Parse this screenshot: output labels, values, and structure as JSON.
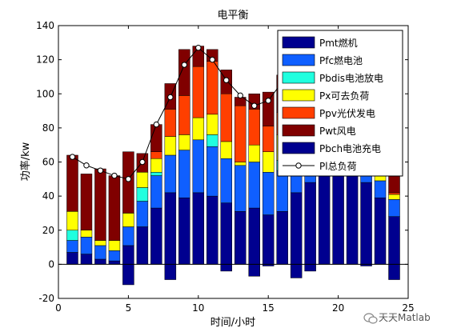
{
  "watermark": "天天Matlab",
  "chart_data": {
    "type": "bar",
    "stacked": true,
    "title": "电平衡",
    "xlabel": "时间/小时",
    "ylabel": "功率/kw",
    "xlim": [
      0,
      25
    ],
    "ylim": [
      -20,
      140
    ],
    "xticks": [
      0,
      5,
      10,
      15,
      20,
      25
    ],
    "yticks": [
      -20,
      0,
      20,
      40,
      60,
      80,
      100,
      120,
      140
    ],
    "grid": false,
    "legend_position": "top-right",
    "x": [
      1,
      2,
      3,
      4,
      5,
      6,
      7,
      8,
      9,
      10,
      11,
      12,
      13,
      14,
      15,
      16,
      17,
      18,
      19,
      20,
      21,
      22,
      23,
      24
    ],
    "series": [
      {
        "name": "Pmt燃机",
        "color": "#00008f",
        "values": [
          7,
          6,
          3,
          2,
          11,
          22,
          33,
          42,
          39,
          42,
          40,
          36,
          31,
          33,
          29,
          31,
          42,
          48,
          55,
          60,
          59,
          48,
          39,
          28
        ]
      },
      {
        "name": "Pfc燃电池",
        "color": "#0f5fff",
        "values": [
          7,
          10,
          8,
          6,
          11,
          15,
          19,
          22,
          28,
          31,
          29,
          26,
          27,
          27,
          25,
          24,
          18,
          16,
          13,
          12,
          10,
          10,
          10,
          10
        ]
      },
      {
        "name": "Pbdis电池放电",
        "color": "#20ffdf",
        "values": [
          6,
          0,
          0,
          0,
          0,
          8,
          2,
          0,
          0,
          0,
          7,
          0,
          0,
          0,
          0,
          6,
          0,
          0,
          0,
          0,
          0,
          0,
          0,
          0
        ]
      },
      {
        "name": "Px可去负荷",
        "color": "#ffff00",
        "values": [
          11,
          4,
          3,
          6,
          8,
          9,
          8,
          11,
          9,
          13,
          12,
          10,
          2,
          10,
          12,
          15,
          10,
          8,
          7,
          6,
          8,
          10,
          7,
          3
        ]
      },
      {
        "name": "Ppv光伏发电",
        "color": "#ff3f00",
        "values": [
          0,
          0,
          0,
          0,
          0,
          0,
          4,
          16,
          23,
          30,
          31,
          28,
          33,
          21,
          15,
          13,
          12,
          10,
          8,
          6,
          5,
          5,
          3,
          1
        ]
      },
      {
        "name": "Pwt风电",
        "color": "#800000",
        "values": [
          33,
          33,
          42,
          38,
          36,
          11,
          16,
          15,
          27,
          12,
          7,
          14,
          5,
          9,
          20,
          22,
          16,
          19,
          15,
          11,
          20,
          19,
          23,
          20
        ]
      },
      {
        "name": "Pbch电池充电",
        "color": "#00008f",
        "values": [
          0,
          0,
          0,
          0,
          -12,
          0,
          0,
          -9,
          0,
          0,
          0,
          -4,
          0,
          -7,
          -1,
          0,
          -8,
          -4,
          0,
          0,
          0,
          -1,
          0,
          -9
        ]
      }
    ],
    "line": {
      "name": "Pl总负荷",
      "color": "#000000",
      "values": [
        63,
        58,
        55,
        52,
        50,
        60,
        82,
        98,
        117,
        127,
        120,
        108,
        99,
        93,
        96,
        107,
        103,
        104,
        101,
        98,
        100,
        92,
        79,
        61
      ]
    }
  }
}
